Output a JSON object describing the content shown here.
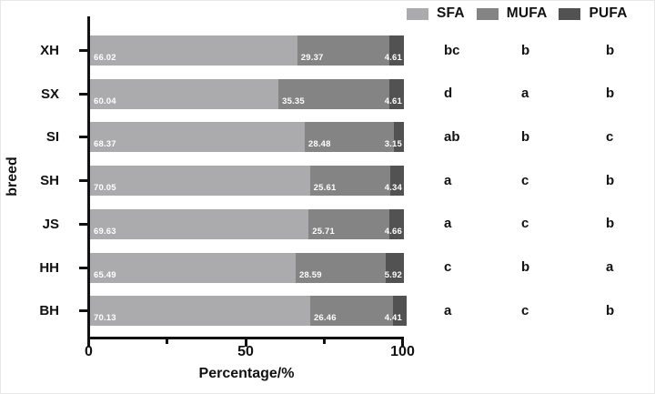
{
  "chart_data": {
    "type": "bar",
    "orientation": "horizontal",
    "stacked": true,
    "title": "",
    "xlabel": "Percentage/%",
    "ylabel": "breed",
    "xlim": [
      0,
      100
    ],
    "x_major_ticks": [
      "0",
      "50",
      "100"
    ],
    "x_major_tick_values": [
      0,
      50,
      100
    ],
    "x_minor_tick_values": [
      25,
      75
    ],
    "grid": false,
    "legend_position": "top-right",
    "categories": [
      "XH",
      "SX",
      "SI",
      "SH",
      "JS",
      "HH",
      "BH"
    ],
    "series": [
      {
        "name": "SFA",
        "color": "#ababad",
        "values": [
          66.02,
          60.04,
          68.37,
          70.05,
          69.63,
          65.49,
          70.13
        ]
      },
      {
        "name": "MUFA",
        "color": "#848484",
        "values": [
          29.37,
          35.35,
          28.48,
          25.61,
          25.71,
          28.59,
          26.46
        ]
      },
      {
        "name": "PUFA",
        "color": "#525252",
        "values": [
          4.61,
          4.61,
          3.15,
          4.34,
          4.66,
          5.92,
          4.41
        ]
      }
    ],
    "value_label_color": "#ffffff",
    "significance_letters": [
      [
        "bc",
        "b",
        "b"
      ],
      [
        "d",
        "a",
        "b"
      ],
      [
        "ab",
        "b",
        "c"
      ],
      [
        "a",
        "c",
        "b"
      ],
      [
        "a",
        "c",
        "b"
      ],
      [
        "c",
        "b",
        "a"
      ],
      [
        "a",
        "c",
        "b"
      ]
    ],
    "axis_color": "#111111",
    "text_color": "#111111"
  }
}
